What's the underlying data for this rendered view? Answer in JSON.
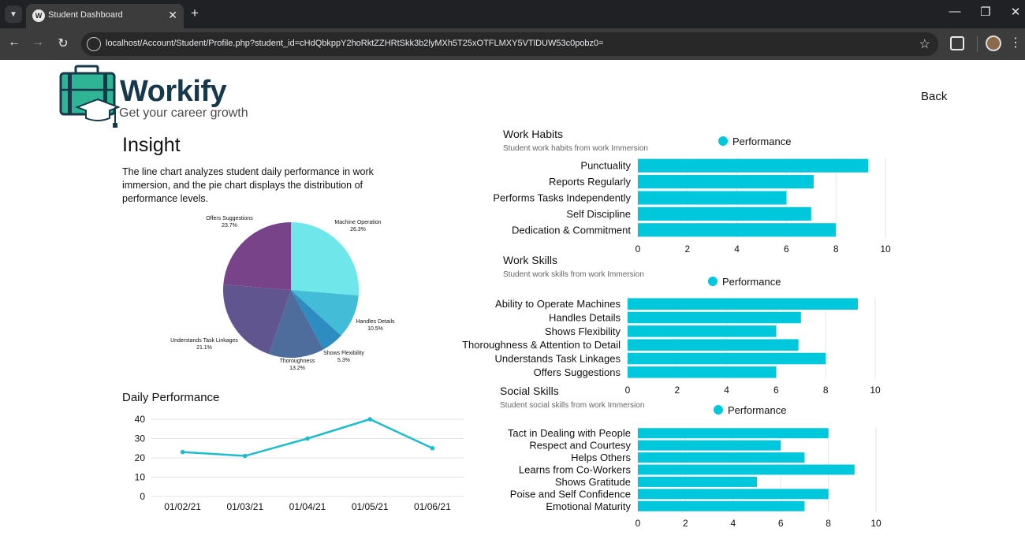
{
  "browser": {
    "tab_title": "Student Dashboard",
    "url": "localhost/Account/Student/Profile.php?student_id=cHdQbkppY2hoRktZZHRtSkk3b2lyMXh5T25xOTFLMXY5VTlDUW53c0pobz0="
  },
  "icons": [
    "tab-list-chevron-icon",
    "workify-favicon-icon",
    "close-icon",
    "plus-icon",
    "minimize-icon",
    "restore-icon",
    "back-arrow-icon",
    "forward-arrow-icon",
    "reload-icon",
    "site-info-icon",
    "bookmark-star-icon",
    "extensions-puzzle-icon",
    "profile-avatar-icon",
    "more-vert-icon",
    "briefcase-graduation-cap-logo-icon"
  ],
  "colors": {
    "bar": "#00c8dc",
    "line": "#1fbccf",
    "brand": "#16384a",
    "logo_green": "#2fb596"
  },
  "brand": {
    "name": "Workify",
    "tagline": "Get your career growth"
  },
  "nav": {
    "back_label": "Back"
  },
  "insight": {
    "title": "Insight",
    "description": "The line chart analyzes student daily performance in work immersion, and the pie chart displays the distribution of performance levels."
  },
  "chart_data": [
    {
      "type": "pie",
      "title": "",
      "slices": [
        {
          "label": "Machine Operation",
          "value": 26.3,
          "display": "26.3%",
          "color": "#6ee6ea"
        },
        {
          "label": "Handles Details",
          "value": 10.5,
          "display": "10.5%",
          "color": "#42bcd7"
        },
        {
          "label": "Shows Flexibility",
          "value": 5.3,
          "display": "5.3%",
          "color": "#2e8dc0"
        },
        {
          "label": "Thoroughness",
          "value": 13.2,
          "display": "13.2%",
          "color": "#4e6c9c"
        },
        {
          "label": "Understands Task Linkages",
          "value": 21.1,
          "display": "21.1%",
          "color": "#615590"
        },
        {
          "label": "Offers Suggestions",
          "value": 23.7,
          "display": "23.7%",
          "color": "#784388"
        }
      ]
    },
    {
      "type": "line",
      "title": "Daily Performance",
      "x": [
        "01/02/21",
        "01/03/21",
        "01/04/21",
        "01/05/21",
        "01/06/21"
      ],
      "series": [
        {
          "values": [
            23,
            21,
            30,
            40,
            25
          ]
        }
      ],
      "ylim": [
        0,
        40
      ],
      "yticks": [
        0,
        10,
        20,
        30,
        40
      ],
      "grid": true
    },
    {
      "type": "bar",
      "orientation": "horizontal",
      "title": "Work Habits",
      "subtitle": "Student work habits from work Immersion",
      "legend": "Performance",
      "categories": [
        "Punctuality",
        "Reports Regularly",
        "Performs Tasks Independently",
        "Self Discipline",
        "Dedication & Commitment"
      ],
      "values": [
        9.3,
        7.1,
        6.0,
        7.0,
        8.0
      ],
      "xlim": [
        0,
        10
      ],
      "xticks": [
        0,
        2,
        4,
        6,
        8,
        10
      ]
    },
    {
      "type": "bar",
      "orientation": "horizontal",
      "title": "Work Skills",
      "subtitle": "Student work skills from work Immersion",
      "legend": "Performance",
      "categories": [
        "Ability to Operate Machines",
        "Handles Details",
        "Shows Flexibility",
        "Thoroughness & Attention to Detail",
        "Understands Task Linkages",
        "Offers Suggestions"
      ],
      "values": [
        9.3,
        7.0,
        6.0,
        6.9,
        8.0,
        6.0
      ],
      "xlim": [
        0,
        10
      ],
      "xticks": [
        0,
        2,
        4,
        6,
        8,
        10
      ]
    },
    {
      "type": "bar",
      "orientation": "horizontal",
      "title": "Social Skills",
      "subtitle": "Student social skills from work Immersion",
      "legend": "Performance",
      "categories": [
        "Tact in Dealing with People",
        "Respect and Courtesy",
        "Helps Others",
        "Learns from Co-Workers",
        "Shows Gratitude",
        "Poise and Self Confidence",
        "Emotional Maturity"
      ],
      "values": [
        8.0,
        6.0,
        7.0,
        9.1,
        5.0,
        8.0,
        7.0
      ],
      "xlim": [
        0,
        10
      ],
      "xticks": [
        0,
        2,
        4,
        6,
        8,
        10
      ]
    }
  ]
}
